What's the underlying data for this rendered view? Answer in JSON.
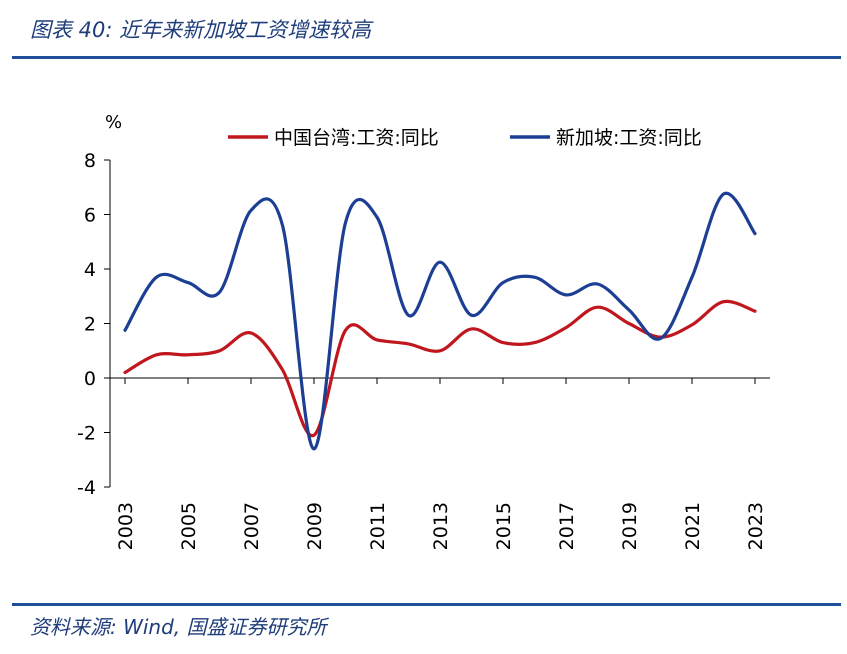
{
  "figure": {
    "title": "图表 40:  近年来新加坡工资增速较高",
    "source": "资料来源:  Wind, 国盛证券研究所"
  },
  "chart_data": {
    "type": "line",
    "ylabel": "%",
    "ylim": [
      -4,
      8
    ],
    "yticks": [
      -4,
      -2,
      0,
      2,
      4,
      6,
      8
    ],
    "x": [
      2003,
      2004,
      2005,
      2006,
      2007,
      2008,
      2009,
      2010,
      2011,
      2012,
      2013,
      2014,
      2015,
      2016,
      2017,
      2018,
      2019,
      2020,
      2021,
      2022,
      2023
    ],
    "xtick_labels": [
      "2003",
      "2005",
      "2007",
      "2009",
      "2011",
      "2013",
      "2015",
      "2017",
      "2019",
      "2021",
      "2023"
    ],
    "legend": "top",
    "series": [
      {
        "name": "中国台湾:工资:同比",
        "color": "#c0161d",
        "values": [
          0.2,
          0.85,
          0.85,
          1.0,
          1.65,
          0.3,
          -2.1,
          1.75,
          1.4,
          1.25,
          1.0,
          1.8,
          1.3,
          1.3,
          1.85,
          2.6,
          2.0,
          1.5,
          1.95,
          2.8,
          2.45
        ]
      },
      {
        "name": "新加坡:工资:同比",
        "color": "#1c3f94",
        "values": [
          1.75,
          3.7,
          3.5,
          3.15,
          6.15,
          5.6,
          -2.6,
          5.7,
          5.9,
          2.3,
          4.25,
          2.3,
          3.5,
          3.7,
          3.05,
          3.45,
          2.5,
          1.45,
          3.7,
          6.75,
          5.3
        ]
      }
    ]
  }
}
